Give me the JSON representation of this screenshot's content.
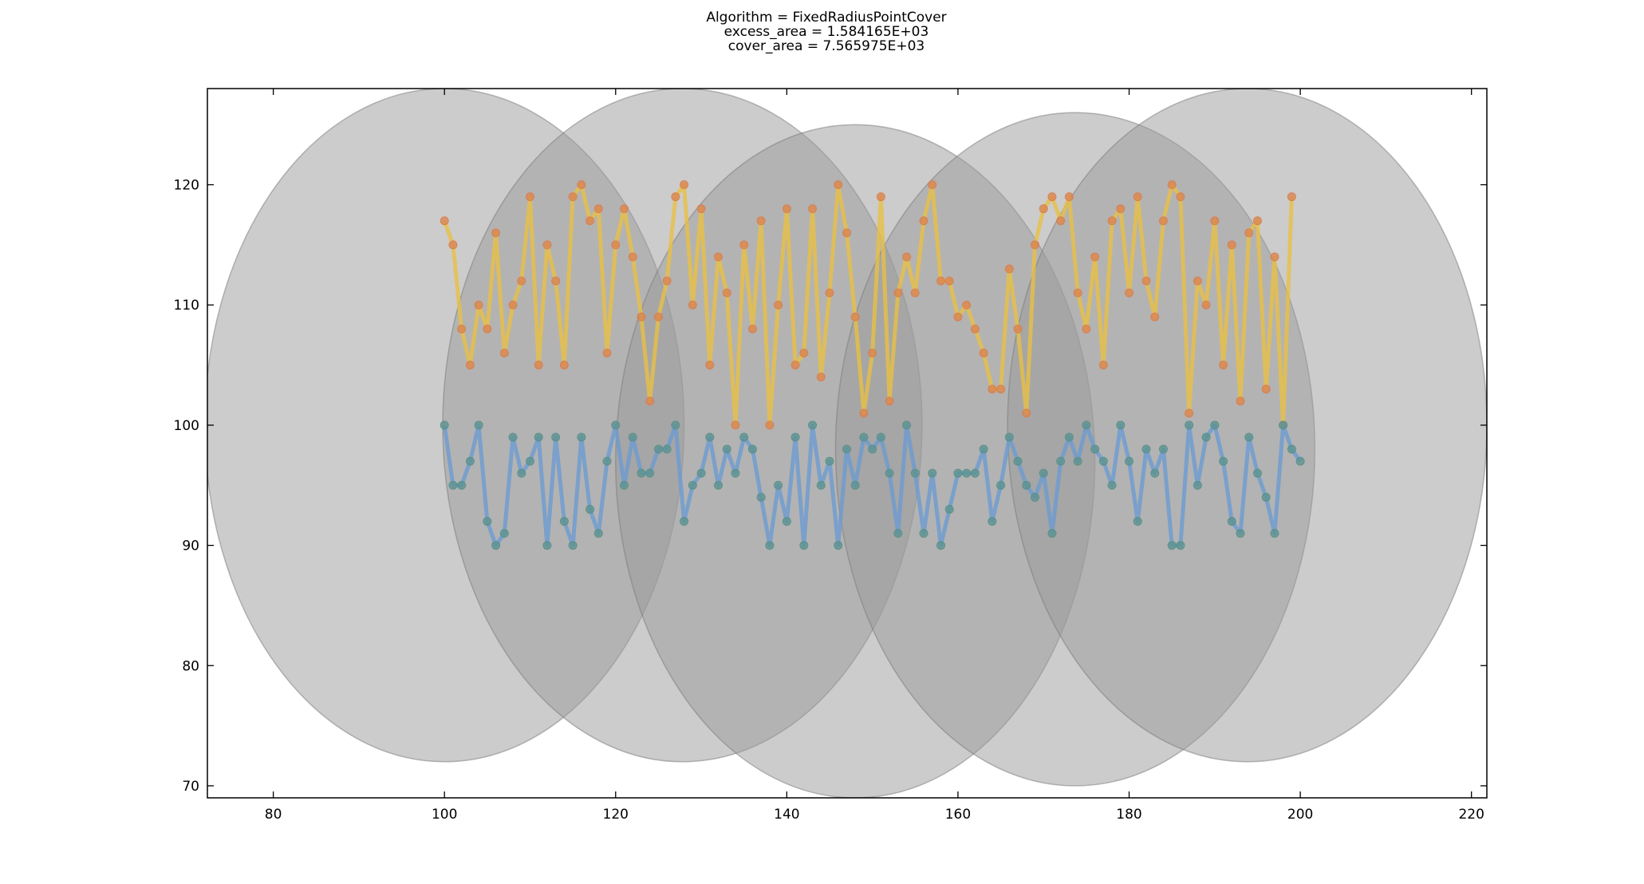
{
  "chart_data": {
    "type": "line",
    "title": "Algorithm = FixedRadiusPointCover",
    "subtitle": [
      "excess_area = 1.584165E+03",
      "cover_area = 7.565975E+03"
    ],
    "xlim": [
      72.3,
      221.8
    ],
    "ylim": [
      69,
      128
    ],
    "xticks": [
      80,
      100,
      120,
      140,
      160,
      180,
      200,
      220
    ],
    "yticks": [
      70,
      80,
      90,
      100,
      110,
      120
    ],
    "circle_color": "#9a9a9a",
    "circles": [
      {
        "x": 100,
        "y": 100,
        "r": 28
      },
      {
        "x": 127.8,
        "y": 100,
        "r": 28
      },
      {
        "x": 148,
        "y": 97,
        "r": 28
      },
      {
        "x": 173.7,
        "y": 98,
        "r": 28
      },
      {
        "x": 193.8,
        "y": 100,
        "r": 28
      }
    ],
    "series": [
      {
        "color": "#e8bf45",
        "marker_color": "#d9824f",
        "x_start": 100,
        "values": [
          117,
          115,
          108,
          105,
          110,
          108,
          116,
          106,
          110,
          112,
          119,
          105,
          115,
          112,
          105,
          119,
          120,
          117,
          118,
          106,
          115,
          118,
          114,
          109,
          102,
          109,
          112,
          119,
          120,
          110,
          118,
          105,
          114,
          111,
          100,
          115,
          108,
          117,
          100,
          110,
          118,
          105,
          106,
          118,
          104,
          111,
          120,
          116,
          109,
          101,
          106,
          119,
          102,
          111,
          114,
          111,
          117,
          120,
          112,
          112,
          109,
          110,
          108,
          106,
          103,
          103,
          113,
          108,
          101,
          115,
          118,
          119,
          117,
          119,
          111,
          108,
          114,
          105,
          117,
          118,
          111,
          119,
          112,
          109,
          117,
          120,
          119,
          101,
          112,
          110,
          117,
          105,
          115,
          102,
          116,
          117,
          103,
          114,
          100,
          119
        ]
      },
      {
        "color": "#6b9bd1",
        "marker_color": "#5b918c",
        "x_start": 100,
        "values": [
          100,
          95,
          95,
          97,
          100,
          92,
          90,
          91,
          99,
          96,
          97,
          99,
          90,
          99,
          92,
          90,
          99,
          93,
          91,
          97,
          100,
          95,
          99,
          96,
          96,
          98,
          98,
          100,
          92,
          95,
          96,
          99,
          95,
          98,
          96,
          99,
          98,
          94,
          90,
          95,
          92,
          99,
          90,
          100,
          95,
          97,
          90,
          98,
          95,
          99,
          98,
          99,
          96,
          91,
          100,
          96,
          91,
          96,
          90,
          93,
          96,
          96,
          96,
          98,
          92,
          95,
          99,
          97,
          95,
          94,
          96,
          91,
          97,
          99,
          97,
          100,
          98,
          97,
          95,
          100,
          97,
          92,
          98,
          96,
          98,
          90,
          90,
          100,
          95,
          99,
          100,
          97,
          92,
          91,
          99,
          96,
          94,
          91,
          100,
          98,
          97
        ]
      }
    ]
  }
}
